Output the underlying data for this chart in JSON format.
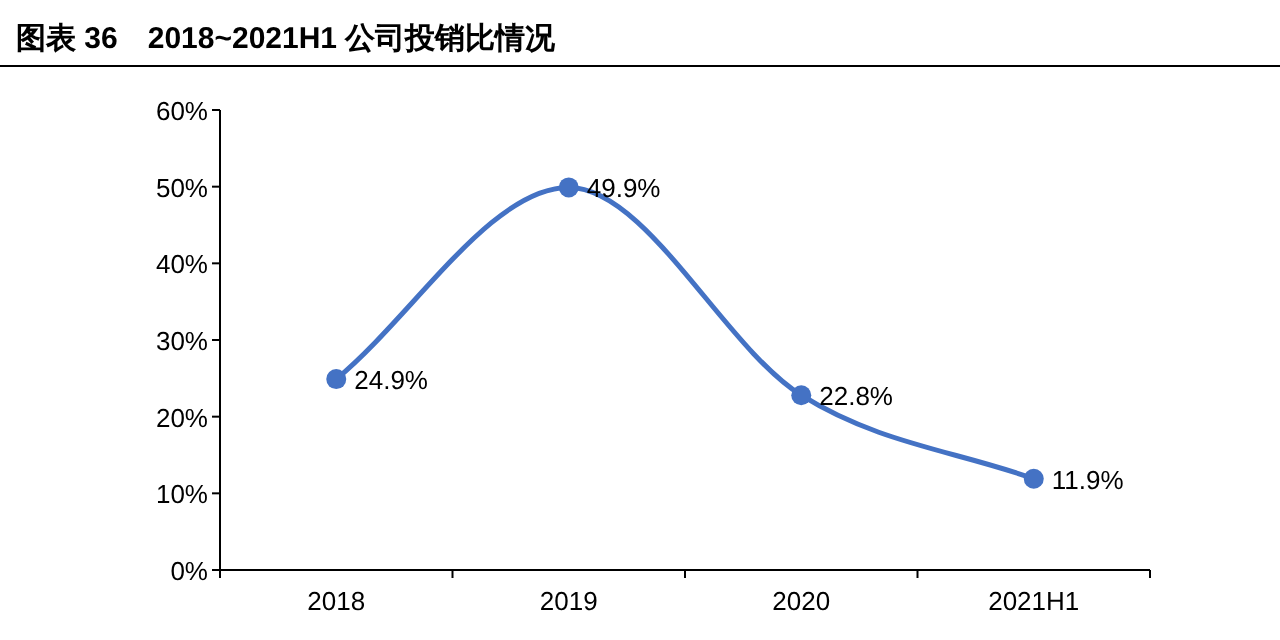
{
  "chart_data": {
    "type": "line",
    "title": "图表 36　2018~2021H1 公司投销比情况",
    "categories": [
      "2018",
      "2019",
      "2020",
      "2021H1"
    ],
    "series": [
      {
        "color": "#4472c4",
        "values": [
          24.9,
          49.9,
          22.8,
          11.9
        ],
        "value_labels": [
          "24.9%",
          "49.9%",
          "22.8%",
          "11.9%"
        ]
      }
    ],
    "ylim": [
      0,
      60
    ],
    "yticks": [
      {
        "value": 0,
        "label": "0%"
      },
      {
        "value": 10,
        "label": "10%"
      },
      {
        "value": 20,
        "label": "20%"
      },
      {
        "value": 30,
        "label": "30%"
      },
      {
        "value": 40,
        "label": "40%"
      },
      {
        "value": 50,
        "label": "50%"
      },
      {
        "value": 60,
        "label": "60%"
      }
    ],
    "marker": "circle"
  }
}
